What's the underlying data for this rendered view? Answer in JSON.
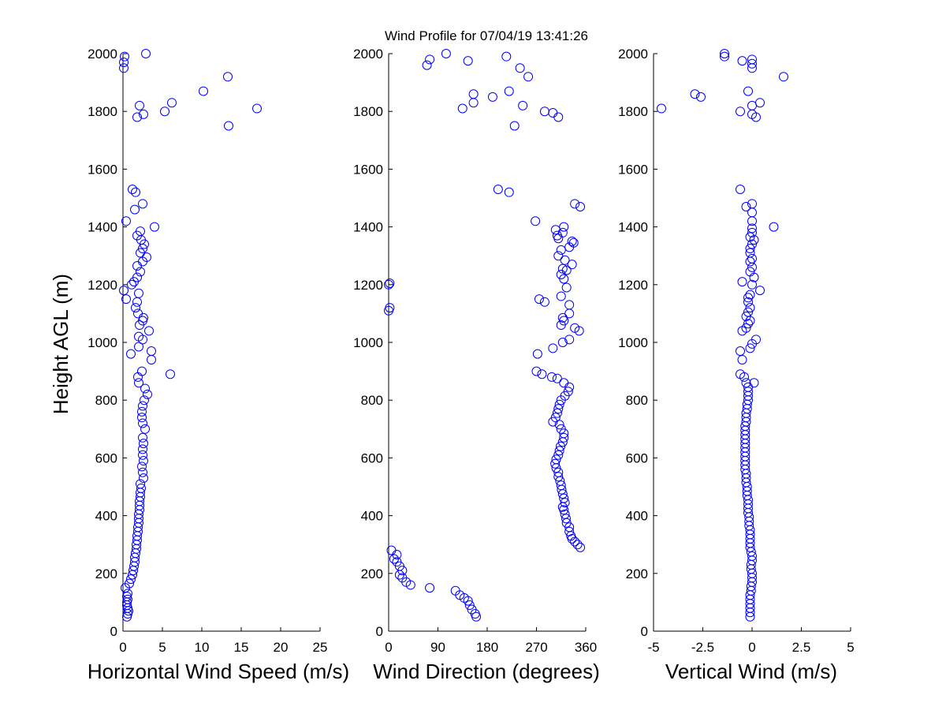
{
  "title": "Wind Profile for  07/04/19 13:41:26",
  "ylabel": "Height AGL (m)",
  "colors": {
    "marker": "#0000ff",
    "axis": "#000000",
    "background": "#ffffff"
  },
  "chart_data": [
    {
      "type": "scatter",
      "name": "speed",
      "xlabel": "Horizontal Wind Speed (m/s)",
      "xlim": [
        0,
        25
      ],
      "xticks": [
        "0",
        "5",
        "10",
        "15",
        "20",
        "25"
      ],
      "xtick_values": [
        0,
        5,
        10,
        15,
        20,
        25
      ],
      "ylim": [
        0,
        2000
      ],
      "yticks": [
        "0",
        "200",
        "400",
        "600",
        "800",
        "1000",
        "1200",
        "1400",
        "1600",
        "1800",
        "2000"
      ],
      "yticks_shown": true,
      "points": [
        [
          0.5,
          50
        ],
        [
          0.6,
          60
        ],
        [
          0.7,
          70
        ],
        [
          0.6,
          80
        ],
        [
          0.5,
          90
        ],
        [
          0.5,
          100
        ],
        [
          0.6,
          110
        ],
        [
          0.5,
          120
        ],
        [
          0.6,
          130
        ],
        [
          0.3,
          150
        ],
        [
          0.8,
          165
        ],
        [
          1.0,
          180
        ],
        [
          1.2,
          195
        ],
        [
          1.3,
          210
        ],
        [
          1.4,
          225
        ],
        [
          1.5,
          240
        ],
        [
          1.5,
          255
        ],
        [
          1.6,
          270
        ],
        [
          1.7,
          285
        ],
        [
          1.7,
          300
        ],
        [
          1.8,
          315
        ],
        [
          1.8,
          330
        ],
        [
          1.9,
          345
        ],
        [
          1.9,
          360
        ],
        [
          2.0,
          375
        ],
        [
          2.0,
          390
        ],
        [
          2.0,
          405
        ],
        [
          2.1,
          420
        ],
        [
          2.1,
          435
        ],
        [
          2.1,
          450
        ],
        [
          2.2,
          465
        ],
        [
          2.2,
          480
        ],
        [
          2.3,
          495
        ],
        [
          2.2,
          510
        ],
        [
          2.6,
          530
        ],
        [
          2.5,
          550
        ],
        [
          2.4,
          570
        ],
        [
          2.6,
          590
        ],
        [
          2.5,
          610
        ],
        [
          2.5,
          630
        ],
        [
          2.6,
          650
        ],
        [
          2.5,
          670
        ],
        [
          2.8,
          700
        ],
        [
          2.5,
          720
        ],
        [
          2.4,
          740
        ],
        [
          2.4,
          760
        ],
        [
          2.5,
          780
        ],
        [
          2.7,
          800
        ],
        [
          3.1,
          820
        ],
        [
          2.8,
          840
        ],
        [
          2.0,
          860
        ],
        [
          1.9,
          880
        ],
        [
          2.4,
          900
        ],
        [
          6.0,
          890
        ],
        [
          3.6,
          940
        ],
        [
          3.6,
          970
        ],
        [
          1.0,
          960
        ],
        [
          2.0,
          985
        ],
        [
          2.5,
          1010
        ],
        [
          2.0,
          1020
        ],
        [
          3.3,
          1040
        ],
        [
          2.1,
          1060
        ],
        [
          2.5,
          1075
        ],
        [
          2.6,
          1085
        ],
        [
          1.9,
          1100
        ],
        [
          1.6,
          1120
        ],
        [
          1.8,
          1140
        ],
        [
          0.4,
          1150
        ],
        [
          0.1,
          1180
        ],
        [
          1.1,
          1200
        ],
        [
          2.0,
          1170
        ],
        [
          1.4,
          1210
        ],
        [
          1.8,
          1225
        ],
        [
          2.2,
          1245
        ],
        [
          1.8,
          1265
        ],
        [
          2.5,
          1280
        ],
        [
          3.0,
          1295
        ],
        [
          2.2,
          1310
        ],
        [
          2.5,
          1325
        ],
        [
          2.7,
          1340
        ],
        [
          2.3,
          1355
        ],
        [
          1.8,
          1370
        ],
        [
          2.2,
          1385
        ],
        [
          4.0,
          1400
        ],
        [
          0.4,
          1420
        ],
        [
          1.5,
          1460
        ],
        [
          2.5,
          1480
        ],
        [
          1.6,
          1520
        ],
        [
          1.2,
          1530
        ],
        [
          13.4,
          1750
        ],
        [
          1.8,
          1780
        ],
        [
          2.6,
          1790
        ],
        [
          5.3,
          1800
        ],
        [
          2.1,
          1820
        ],
        [
          6.2,
          1830
        ],
        [
          17.0,
          1810
        ],
        [
          10.2,
          1870
        ],
        [
          13.3,
          1920
        ],
        [
          0.1,
          1950
        ],
        [
          0.1,
          1970
        ],
        [
          0.2,
          1990
        ],
        [
          2.9,
          2000
        ]
      ]
    },
    {
      "type": "scatter",
      "name": "direction",
      "xlabel": "Wind Direction (degrees)",
      "xlim": [
        0,
        360
      ],
      "xticks": [
        "0",
        "90",
        "180",
        "270",
        "360"
      ],
      "xtick_values": [
        0,
        90,
        180,
        270,
        360
      ],
      "ylim": [
        0,
        2000
      ],
      "yticks": [
        "0",
        "200",
        "400",
        "600",
        "800",
        "1000",
        "1200",
        "1400",
        "1600",
        "1800",
        "2000"
      ],
      "yticks_shown": true,
      "points": [
        [
          160,
          50
        ],
        [
          158,
          60
        ],
        [
          152,
          75
        ],
        [
          148,
          90
        ],
        [
          145,
          105
        ],
        [
          138,
          115
        ],
        [
          130,
          125
        ],
        [
          122,
          140
        ],
        [
          75,
          150
        ],
        [
          40,
          160
        ],
        [
          32,
          170
        ],
        [
          25,
          185
        ],
        [
          20,
          195
        ],
        [
          25,
          210
        ],
        [
          20,
          225
        ],
        [
          15,
          240
        ],
        [
          10,
          250
        ],
        [
          15,
          265
        ],
        [
          5,
          280
        ],
        [
          350,
          290
        ],
        [
          345,
          300
        ],
        [
          340,
          310
        ],
        [
          335,
          320
        ],
        [
          333,
          330
        ],
        [
          330,
          345
        ],
        [
          330,
          360
        ],
        [
          325,
          375
        ],
        [
          324,
          390
        ],
        [
          322,
          405
        ],
        [
          320,
          420
        ],
        [
          318,
          430
        ],
        [
          322,
          445
        ],
        [
          320,
          460
        ],
        [
          318,
          475
        ],
        [
          316,
          490
        ],
        [
          315,
          505
        ],
        [
          313,
          520
        ],
        [
          310,
          535
        ],
        [
          310,
          550
        ],
        [
          306,
          565
        ],
        [
          304,
          580
        ],
        [
          306,
          595
        ],
        [
          310,
          610
        ],
        [
          312,
          625
        ],
        [
          314,
          640
        ],
        [
          318,
          655
        ],
        [
          320,
          670
        ],
        [
          320,
          685
        ],
        [
          315,
          700
        ],
        [
          312,
          715
        ],
        [
          300,
          725
        ],
        [
          305,
          740
        ],
        [
          308,
          755
        ],
        [
          310,
          770
        ],
        [
          312,
          785
        ],
        [
          315,
          800
        ],
        [
          322,
          815
        ],
        [
          328,
          830
        ],
        [
          330,
          845
        ],
        [
          320,
          860
        ],
        [
          308,
          875
        ],
        [
          298,
          880
        ],
        [
          280,
          890
        ],
        [
          270,
          900
        ],
        [
          272,
          960
        ],
        [
          300,
          980
        ],
        [
          318,
          1000
        ],
        [
          330,
          1010
        ],
        [
          348,
          1040
        ],
        [
          340,
          1050
        ],
        [
          315,
          1060
        ],
        [
          320,
          1075
        ],
        [
          318,
          1085
        ],
        [
          330,
          1100
        ],
        [
          330,
          1130
        ],
        [
          285,
          1140
        ],
        [
          275,
          1150
        ],
        [
          315,
          1160
        ],
        [
          325,
          1190
        ],
        [
          0,
          1110
        ],
        [
          2,
          1120
        ],
        [
          0,
          1200
        ],
        [
          2,
          1205
        ],
        [
          320,
          1220
        ],
        [
          315,
          1235
        ],
        [
          325,
          1250
        ],
        [
          318,
          1255
        ],
        [
          335,
          1270
        ],
        [
          322,
          1285
        ],
        [
          310,
          1300
        ],
        [
          315,
          1320
        ],
        [
          330,
          1330
        ],
        [
          338,
          1345
        ],
        [
          335,
          1350
        ],
        [
          310,
          1360
        ],
        [
          308,
          1370
        ],
        [
          318,
          1380
        ],
        [
          305,
          1390
        ],
        [
          320,
          1400
        ],
        [
          268,
          1420
        ],
        [
          350,
          1470
        ],
        [
          340,
          1480
        ],
        [
          220,
          1520
        ],
        [
          200,
          1530
        ],
        [
          230,
          1750
        ],
        [
          310,
          1780
        ],
        [
          300,
          1795
        ],
        [
          285,
          1800
        ],
        [
          135,
          1810
        ],
        [
          155,
          1830
        ],
        [
          245,
          1820
        ],
        [
          190,
          1850
        ],
        [
          155,
          1860
        ],
        [
          220,
          1870
        ],
        [
          255,
          1920
        ],
        [
          240,
          1950
        ],
        [
          70,
          1960
        ],
        [
          75,
          1980
        ],
        [
          145,
          1975
        ],
        [
          215,
          1990
        ],
        [
          105,
          2000
        ]
      ]
    },
    {
      "type": "scatter",
      "name": "vertical",
      "xlabel": "Vertical Wind (m/s)",
      "xlim": [
        -5,
        5
      ],
      "xticks": [
        "-5",
        "-2.5",
        "0",
        "2.5",
        "5"
      ],
      "xtick_values": [
        -5,
        -2.5,
        0,
        2.5,
        5
      ],
      "ylim": [
        0,
        2000
      ],
      "yticks": [
        "0",
        "200",
        "400",
        "600",
        "800",
        "1000",
        "1200",
        "1400",
        "1600",
        "1800",
        "2000"
      ],
      "yticks_shown": true,
      "points": [
        [
          -0.1,
          50
        ],
        [
          -0.1,
          65
        ],
        [
          -0.1,
          80
        ],
        [
          -0.1,
          95
        ],
        [
          -0.1,
          110
        ],
        [
          -0.1,
          125
        ],
        [
          -0.05,
          140
        ],
        [
          -0.05,
          155
        ],
        [
          0,
          170
        ],
        [
          0,
          185
        ],
        [
          0,
          200
        ],
        [
          -0.05,
          215
        ],
        [
          -0.05,
          230
        ],
        [
          0,
          245
        ],
        [
          0,
          260
        ],
        [
          -0.05,
          275
        ],
        [
          -0.1,
          290
        ],
        [
          -0.1,
          305
        ],
        [
          -0.1,
          320
        ],
        [
          -0.1,
          335
        ],
        [
          -0.1,
          350
        ],
        [
          -0.15,
          365
        ],
        [
          -0.15,
          380
        ],
        [
          -0.15,
          395
        ],
        [
          -0.2,
          410
        ],
        [
          -0.2,
          425
        ],
        [
          -0.2,
          440
        ],
        [
          -0.2,
          455
        ],
        [
          -0.25,
          470
        ],
        [
          -0.25,
          485
        ],
        [
          -0.25,
          500
        ],
        [
          -0.3,
          515
        ],
        [
          -0.3,
          530
        ],
        [
          -0.3,
          545
        ],
        [
          -0.35,
          560
        ],
        [
          -0.35,
          575
        ],
        [
          -0.35,
          590
        ],
        [
          -0.35,
          605
        ],
        [
          -0.35,
          620
        ],
        [
          -0.35,
          635
        ],
        [
          -0.35,
          650
        ],
        [
          -0.35,
          665
        ],
        [
          -0.35,
          680
        ],
        [
          -0.35,
          695
        ],
        [
          -0.35,
          710
        ],
        [
          -0.3,
          725
        ],
        [
          -0.3,
          740
        ],
        [
          -0.3,
          755
        ],
        [
          -0.25,
          770
        ],
        [
          -0.25,
          785
        ],
        [
          -0.2,
          800
        ],
        [
          -0.2,
          815
        ],
        [
          -0.2,
          830
        ],
        [
          -0.2,
          845
        ],
        [
          -0.3,
          860
        ],
        [
          0.1,
          860
        ],
        [
          -0.4,
          880
        ],
        [
          -0.6,
          890
        ],
        [
          -0.5,
          940
        ],
        [
          -0.6,
          970
        ],
        [
          -0.1,
          980
        ],
        [
          0.0,
          995
        ],
        [
          0.2,
          1010
        ],
        [
          -0.5,
          1040
        ],
        [
          -0.3,
          1050
        ],
        [
          -0.2,
          1065
        ],
        [
          -0.1,
          1075
        ],
        [
          -0.3,
          1090
        ],
        [
          -0.2,
          1105
        ],
        [
          -0.1,
          1120
        ],
        [
          -0.2,
          1140
        ],
        [
          -0.2,
          1155
        ],
        [
          -0.1,
          1165
        ],
        [
          0.4,
          1180
        ],
        [
          -0.5,
          1210
        ],
        [
          0.0,
          1200
        ],
        [
          0.1,
          1225
        ],
        [
          -0.1,
          1245
        ],
        [
          0.0,
          1260
        ],
        [
          -0.1,
          1280
        ],
        [
          0.0,
          1290
        ],
        [
          -0.1,
          1310
        ],
        [
          -0.1,
          1325
        ],
        [
          0.0,
          1340
        ],
        [
          0.1,
          1355
        ],
        [
          -0.1,
          1365
        ],
        [
          0.0,
          1380
        ],
        [
          0.0,
          1395
        ],
        [
          1.1,
          1400
        ],
        [
          0.0,
          1420
        ],
        [
          0.0,
          1450
        ],
        [
          -0.3,
          1470
        ],
        [
          0.0,
          1480
        ],
        [
          -0.6,
          1530
        ],
        [
          -2.6,
          1850
        ],
        [
          -2.9,
          1860
        ],
        [
          -4.6,
          1810
        ],
        [
          -0.6,
          1800
        ],
        [
          0.0,
          1790
        ],
        [
          0.2,
          1780
        ],
        [
          0.4,
          1830
        ],
        [
          0.0,
          1820
        ],
        [
          -0.2,
          1870
        ],
        [
          1.6,
          1920
        ],
        [
          0.0,
          1950
        ],
        [
          -0.5,
          1975
        ],
        [
          0.0,
          1965
        ],
        [
          0.0,
          1980
        ],
        [
          -1.4,
          1990
        ],
        [
          -1.4,
          2000
        ]
      ]
    }
  ]
}
